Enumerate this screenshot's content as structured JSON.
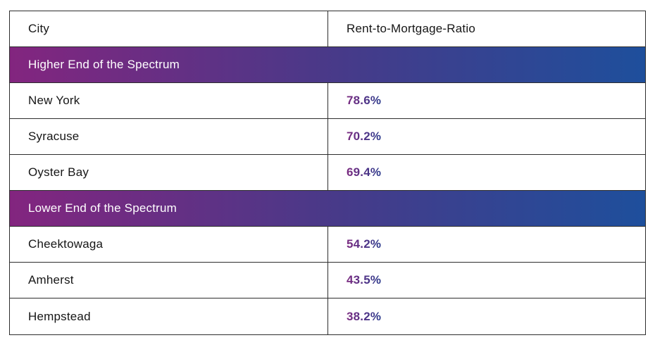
{
  "chart_data": {
    "type": "table",
    "columns": [
      "City",
      "Rent-to-Mortgage-Ratio"
    ],
    "sections": [
      {
        "label": "Higher End of the Spectrum",
        "rows": [
          {
            "city": "New York",
            "ratio": "78.6%"
          },
          {
            "city": "Syracuse",
            "ratio": "70.2%"
          },
          {
            "city": "Oyster Bay",
            "ratio": "69.4%"
          }
        ]
      },
      {
        "label": "Lower End of the Spectrum",
        "rows": [
          {
            "city": "Cheektowaga",
            "ratio": "54.2%"
          },
          {
            "city": "Amherst",
            "ratio": "43.5%"
          },
          {
            "city": "Hempstead",
            "ratio": "38.2%"
          }
        ]
      }
    ]
  },
  "colors": {
    "section_gradient_start": "#83257f",
    "section_gradient_mid": "#473a89",
    "section_gradient_end": "#1e4f9c",
    "value_gradient_start": "#7b2a80",
    "value_gradient_end": "#2b3a8c",
    "border": "#2d2d2d",
    "text": "#161616",
    "section_text": "#ffffff",
    "background": "#ffffff"
  }
}
